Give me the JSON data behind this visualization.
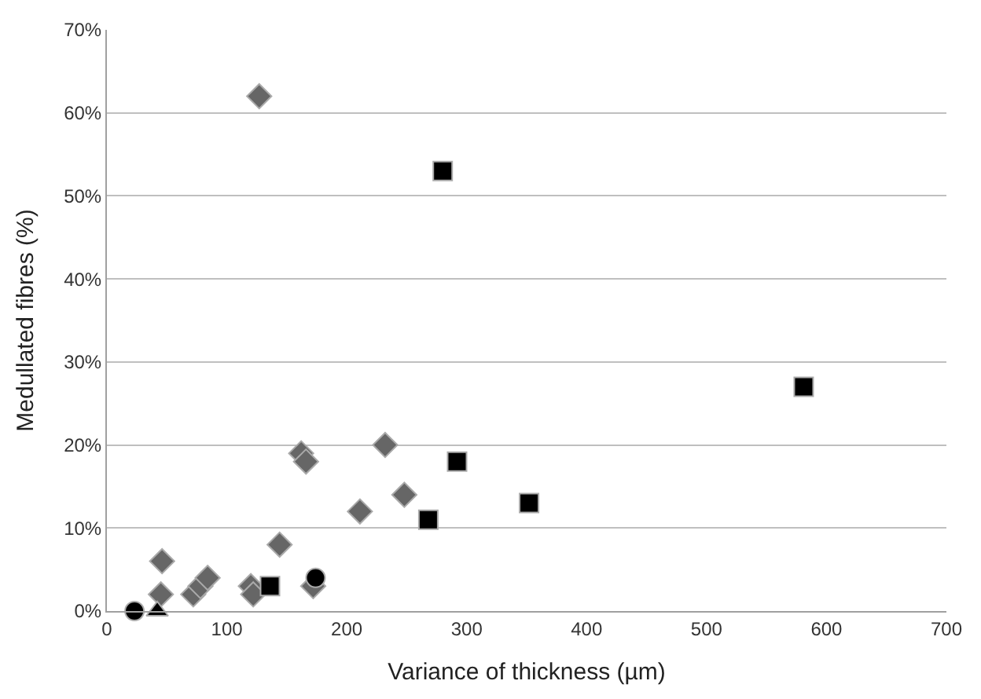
{
  "chart_data": {
    "type": "scatter",
    "xlabel": "Variance of thickness (µm)",
    "ylabel": "Medullated fibres (%)",
    "xlim": [
      0,
      700
    ],
    "xticks": [
      0,
      100,
      200,
      300,
      400,
      500,
      600,
      700
    ],
    "ylim": [
      0,
      70
    ],
    "yticks": [
      {
        "value": 0,
        "label": "0%"
      },
      {
        "value": 10,
        "label": "10%"
      },
      {
        "value": 20,
        "label": "20%"
      },
      {
        "value": 30,
        "label": "30%"
      },
      {
        "value": 40,
        "label": "40%"
      },
      {
        "value": 50,
        "label": "50%"
      },
      {
        "value": 60,
        "label": "60%"
      },
      {
        "value": 70,
        "label": "70%"
      }
    ],
    "grid": "y",
    "series": [
      {
        "color": "#666666",
        "marker": "diamond",
        "x": [
          127,
          46,
          45,
          72,
          78,
          84,
          120,
          122,
          144,
          162,
          166,
          172,
          211,
          232,
          248
        ],
        "values": [
          62,
          6,
          2,
          2,
          3,
          4,
          3,
          2,
          8,
          19,
          18,
          3,
          12,
          20,
          14
        ]
      },
      {
        "color": "#000000",
        "marker": "square",
        "x": [
          136,
          268,
          280,
          292,
          352,
          581
        ],
        "values": [
          3,
          11,
          53,
          18,
          13,
          27
        ]
      },
      {
        "color": "#000000",
        "marker": "circle",
        "x": [
          23,
          174
        ],
        "values": [
          0,
          4
        ]
      },
      {
        "color": "#000000",
        "marker": "triangle",
        "x": [
          42
        ],
        "values": [
          0
        ]
      }
    ]
  }
}
